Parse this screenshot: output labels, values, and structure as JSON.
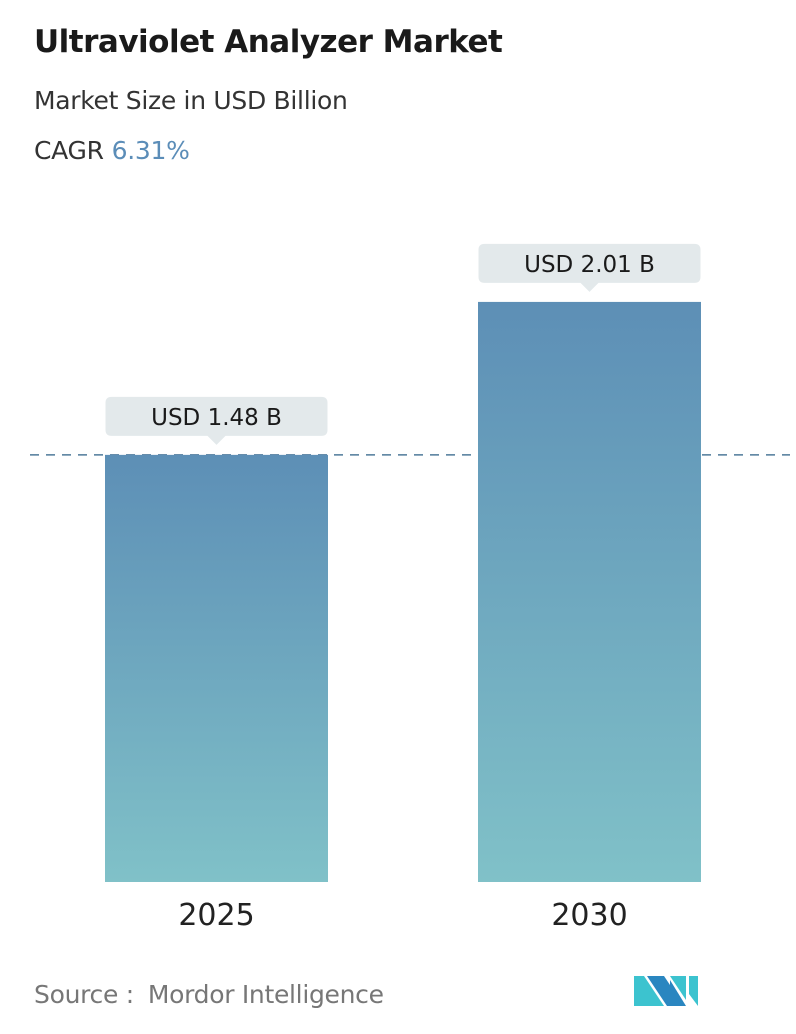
{
  "header": {
    "title": "Ultraviolet Analyzer Market",
    "subtitle": "Market Size in USD Billion",
    "cagr_label": "CAGR",
    "cagr_value": "6.31%"
  },
  "chart_data": {
    "type": "bar",
    "categories": [
      "2025",
      "2030"
    ],
    "values": [
      1.48,
      2.01
    ],
    "data_labels": [
      "USD 1.48 B",
      "USD 2.01 B"
    ],
    "reference_line": {
      "value": 1.48,
      "style": "dashed"
    },
    "ylabel": "Market Size in USD Billion",
    "grid": false,
    "colors": {
      "bar_top": "#5d8fb6",
      "bar_bottom": "#80c1c8",
      "label_bg": "#e3e9eb",
      "reference_line": "#4f7a9a"
    }
  },
  "footer": {
    "source_label": "Source :",
    "source_value": "Mordor Intelligence",
    "logo_text": "MI"
  }
}
